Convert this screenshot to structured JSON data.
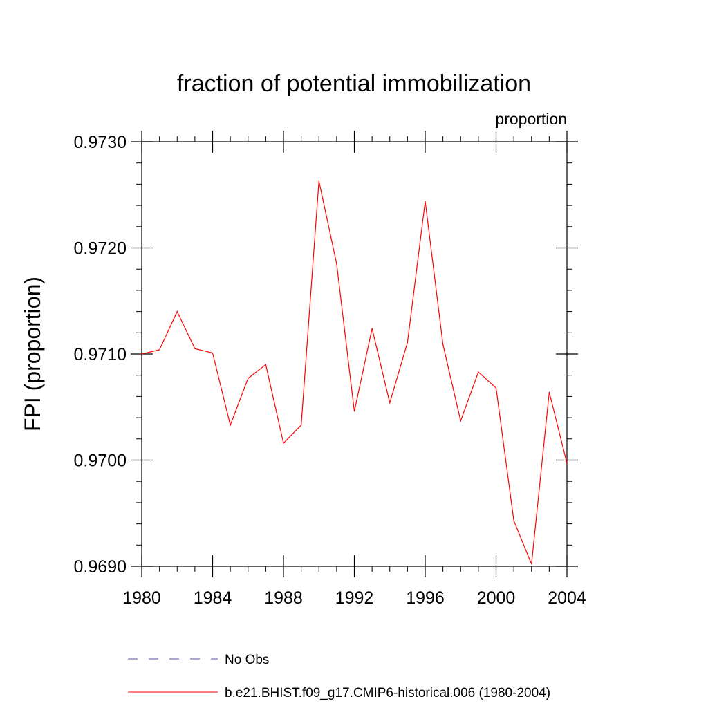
{
  "chart_data": {
    "type": "line",
    "title": "fraction of potential immobilization",
    "units_label": "proportion",
    "xlabel": "",
    "ylabel": "FPI  (proportion)",
    "xlim": [
      1980,
      2004
    ],
    "ylim": [
      0.969,
      0.973
    ],
    "x_ticks": [
      "1980",
      "1984",
      "1988",
      "1992",
      "1996",
      "2000",
      "2004"
    ],
    "y_ticks": [
      "0.9690",
      "0.9700",
      "0.9710",
      "0.9720",
      "0.9730"
    ],
    "series": [
      {
        "name": "b.e21.BHIST.f09_g17.CMIP6-historical.006 (1980-2004)",
        "color": "#ff0000",
        "style": "solid",
        "x": [
          1980,
          1981,
          1982,
          1983,
          1984,
          1985,
          1986,
          1987,
          1988,
          1989,
          1990,
          1991,
          1992,
          1993,
          1994,
          1995,
          1996,
          1997,
          1998,
          1999,
          2000,
          2001,
          2002,
          2003,
          2004
        ],
        "values": [
          0.971,
          0.97104,
          0.9714,
          0.97105,
          0.97101,
          0.97033,
          0.97077,
          0.9709,
          0.97016,
          0.97033,
          0.97263,
          0.97185,
          0.97046,
          0.97124,
          0.97054,
          0.97111,
          0.97244,
          0.97109,
          0.97037,
          0.97083,
          0.97068,
          0.96943,
          0.96902,
          0.97064,
          0.96997
        ]
      }
    ],
    "legend": {
      "placement": "bottom",
      "entries": [
        {
          "label": "No Obs",
          "color": "#5050a0",
          "style": "dashed"
        },
        {
          "label": "b.e21.BHIST.f09_g17.CMIP6-historical.006 (1980-2004)",
          "color": "#ff0000",
          "style": "solid"
        }
      ]
    }
  }
}
